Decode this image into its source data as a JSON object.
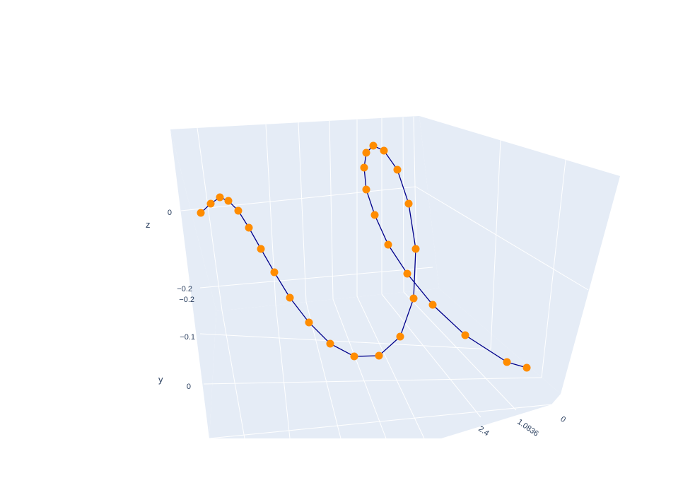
{
  "chart_data": {
    "type": "scatter3d",
    "mode": "lines+markers",
    "axes": {
      "x": {
        "title": "",
        "tick_labels": [
          "0",
          "1.0836",
          "2.4"
        ]
      },
      "y": {
        "title": "y",
        "tick_labels": [
          "0",
          "−0.1",
          "−0.2"
        ]
      },
      "z": {
        "title": "z",
        "tick_labels": [
          "0",
          "−0.2"
        ]
      }
    },
    "colors": {
      "scene_background": "#e5ecf6",
      "grid": "#ffffff",
      "line": "#00008b",
      "marker": "#ff8c00",
      "tick_text": "#2a3f5f"
    },
    "points_projected": [
      [
        745,
        520
      ],
      [
        717,
        512
      ],
      [
        658,
        474
      ],
      [
        612,
        431
      ],
      [
        576,
        387
      ],
      [
        549,
        346
      ],
      [
        530,
        304
      ],
      [
        518,
        268
      ],
      [
        515,
        237
      ],
      [
        518,
        216
      ],
      [
        528,
        206
      ],
      [
        543,
        213
      ],
      [
        562,
        240
      ],
      [
        578,
        288
      ],
      [
        588,
        352
      ],
      [
        585,
        422
      ],
      [
        566,
        476
      ],
      [
        536,
        503
      ],
      [
        501,
        504
      ],
      [
        467,
        486
      ],
      [
        437,
        456
      ],
      [
        410,
        421
      ],
      [
        388,
        385
      ],
      [
        369,
        352
      ],
      [
        352,
        322
      ],
      [
        337,
        298
      ],
      [
        323,
        284
      ],
      [
        311,
        279
      ],
      [
        298,
        288
      ],
      [
        284,
        301
      ]
    ]
  }
}
